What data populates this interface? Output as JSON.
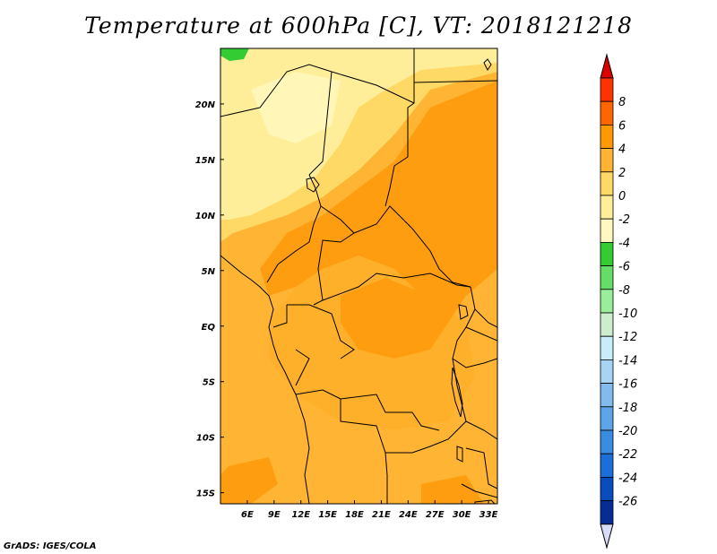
{
  "title": "Temperature at 600hPa [C], VT: 2018121218",
  "credit": "GrADS: IGES/COLA",
  "map": {
    "lon_range": [
      3,
      34
    ],
    "lat_range": [
      -16,
      25
    ],
    "x_ticks": [
      "6E",
      "9E",
      "12E",
      "15E",
      "18E",
      "21E",
      "24E",
      "27E",
      "30E",
      "33E"
    ],
    "y_ticks": [
      "20N",
      "15N",
      "10N",
      "5N",
      "EQ",
      "5S",
      "10S",
      "15S"
    ]
  },
  "colorbar": {
    "labels": [
      "8",
      "6",
      "4",
      "2",
      "0",
      "-2",
      "-4",
      "-6",
      "-8",
      "-10",
      "-12",
      "-14",
      "-16",
      "-18",
      "-20",
      "-22",
      "-24",
      "-26"
    ],
    "colors": [
      "#ff3300",
      "#ff6600",
      "#ff9900",
      "#ffb533",
      "#ffd966",
      "#ffee99",
      "#fff8c0",
      "#33cc33",
      "#66dd66",
      "#99ee99",
      "#cceecc",
      "#c8ecf8",
      "#a8d4f4",
      "#82bcee",
      "#5ea4e8",
      "#3a8ce2",
      "#1d6ed8",
      "#0a4cbe",
      "#062d94"
    ],
    "top_arrow_color": "#dd0000",
    "bottom_arrow_color": "#d8dcf8"
  }
}
